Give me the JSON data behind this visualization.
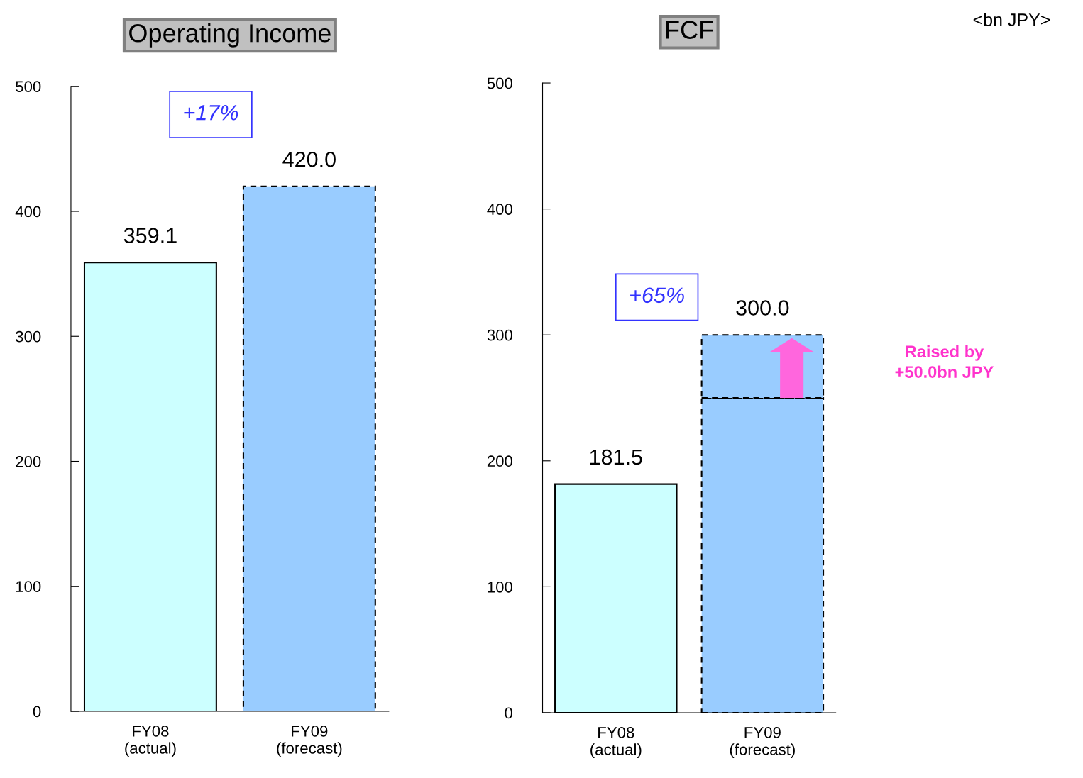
{
  "chart_data": [
    {
      "type": "bar",
      "title": "Operating Income",
      "categories": [
        "FY08\n(actual)",
        "FY09\n(forecast)"
      ],
      "stacked": true,
      "series": [
        {
          "color": "#ccffff",
          "values": [
            359.1,
            null
          ],
          "line_style": "solid"
        },
        {
          "color": "#99ccff",
          "values": [
            null,
            420.0
          ],
          "line_style": "dashed"
        }
      ],
      "totals": [
        "359.1",
        "420.0"
      ],
      "ylim": [
        0,
        500
      ],
      "yticks": [
        0,
        100,
        200,
        300,
        400,
        500
      ],
      "grid": false,
      "legend": false,
      "annotations": [
        "+17%"
      ]
    },
    {
      "type": "bar",
      "title": "FCF",
      "categories": [
        "FY08\n(actual)",
        "FY09\n(forecast)"
      ],
      "stacked": true,
      "series": [
        {
          "color": "#ccffff",
          "values": [
            181.5,
            null
          ],
          "line_style": "solid"
        },
        {
          "color": "#99ccff",
          "values": [
            null,
            250.0
          ],
          "line_style": "dashed"
        },
        {
          "color": "#99ccff",
          "values": [
            null,
            50.0
          ],
          "line_style": "dashed"
        }
      ],
      "totals": [
        "181.5",
        "300.0"
      ],
      "ylim": [
        0,
        500
      ],
      "yticks": [
        0,
        100,
        200,
        300,
        400,
        500
      ],
      "grid": false,
      "legend": false,
      "annotations": [
        "+65%",
        "Raised by\n+50.0bn JPY",
        "<bn JPY>"
      ]
    }
  ]
}
